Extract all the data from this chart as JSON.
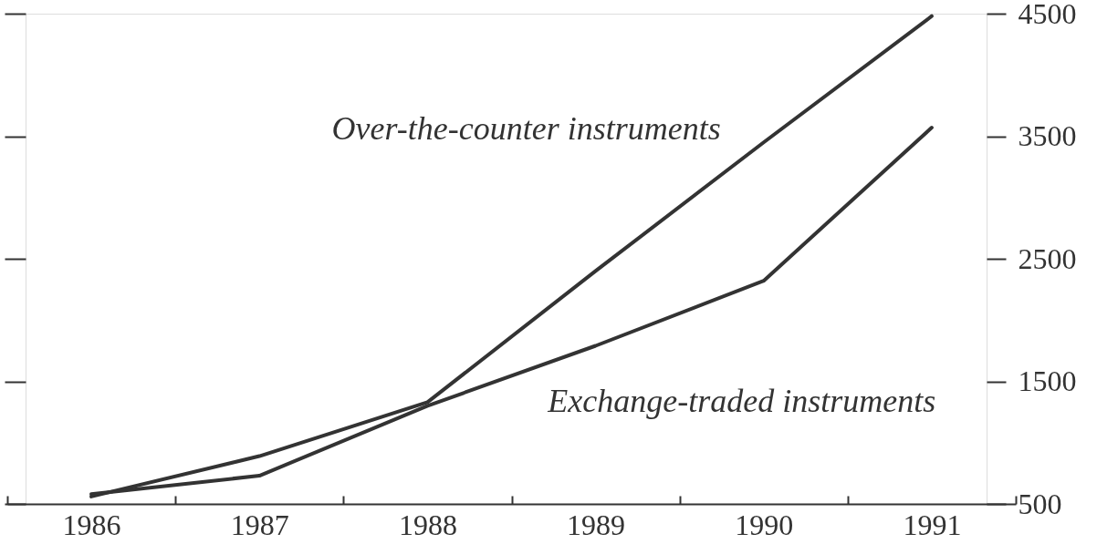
{
  "chart_data": {
    "type": "line",
    "categories": [
      "1986",
      "1987",
      "1988",
      "1989",
      "1990",
      "1991"
    ],
    "series": [
      {
        "name": "Over-the-counter instruments",
        "color": "#333333",
        "values": [
          560,
          890,
          1330,
          2400,
          3450,
          4480
        ]
      },
      {
        "name": "Exchange-traded instruments",
        "color": "#333333",
        "values": [
          580,
          730,
          1300,
          1790,
          2320,
          3570
        ]
      }
    ],
    "ylim": [
      500,
      4500
    ],
    "yticks": [
      500,
      1500,
      2500,
      3500,
      4500
    ],
    "line_style": "solid"
  }
}
